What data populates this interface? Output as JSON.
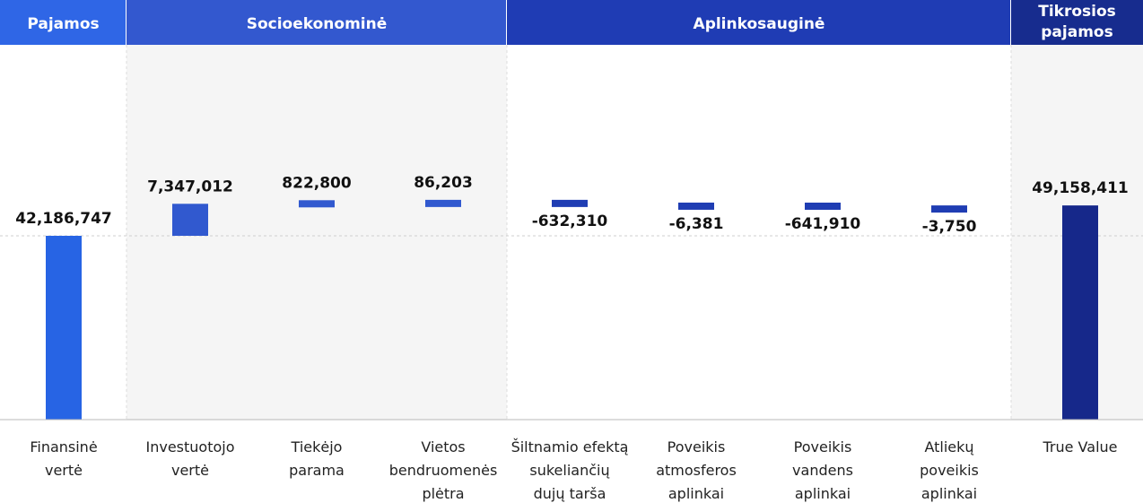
{
  "colors": {
    "pajamos_header": "#2f66e6",
    "socio_header": "#3358cf",
    "aplinko_header": "#1f3cb4",
    "tikros_header": "#172c8e",
    "bar_finansine": "#2764e4",
    "bar_socio": "#3159cf",
    "bar_aplinko": "#1f3db3",
    "bar_tikros": "#16288a",
    "panel_bg": "#f5f5f5"
  },
  "chart_data": {
    "type": "waterfall",
    "sections": [
      {
        "label": "Pajamos",
        "color_key": "pajamos_header"
      },
      {
        "label": "Socioekonominė",
        "color_key": "socio_header"
      },
      {
        "label": "Aplinkosauginė",
        "color_key": "aplinko_header"
      },
      {
        "label": "Tikrosios pajamos",
        "label_lines": [
          "Tikrosios",
          "pajamos"
        ],
        "color_key": "tikros_header"
      }
    ],
    "steps": [
      {
        "category": [
          "Finansinė",
          "vertė"
        ],
        "value": 42186747,
        "value_label": "42,186,747",
        "kind": "total",
        "section": 0,
        "color_key": "bar_finansine"
      },
      {
        "category": [
          "Investuotojo",
          "vertė"
        ],
        "value": 7347012,
        "value_label": "7,347,012",
        "kind": "delta",
        "section": 1,
        "color_key": "bar_socio"
      },
      {
        "category": [
          "Tiekėjo",
          "parama"
        ],
        "value": 822800,
        "value_label": "822,800",
        "kind": "delta",
        "section": 1,
        "color_key": "bar_socio"
      },
      {
        "category": [
          "Vietos",
          "bendruomenės",
          "plėtra"
        ],
        "value": 86203,
        "value_label": "86,203",
        "kind": "delta",
        "section": 1,
        "color_key": "bar_socio"
      },
      {
        "category": [
          "Šiltnamio efektą",
          "sukeliančių",
          "dujų tarša"
        ],
        "value": -632310,
        "value_label": "-632,310",
        "kind": "delta",
        "section": 2,
        "color_key": "bar_aplinko"
      },
      {
        "category": [
          "Poveikis",
          "atmosferos",
          "aplinkai"
        ],
        "value": -6381,
        "value_label": "-6,381",
        "kind": "delta",
        "section": 2,
        "color_key": "bar_aplinko"
      },
      {
        "category": [
          "Poveikis",
          "vandens",
          "aplinkai"
        ],
        "value": -641910,
        "value_label": "-641,910",
        "kind": "delta",
        "section": 2,
        "color_key": "bar_aplinko"
      },
      {
        "category": [
          "Atliekų",
          "poveikis",
          "aplinkai"
        ],
        "value": -3750,
        "value_label": "-3,750",
        "kind": "delta",
        "section": 2,
        "color_key": "bar_aplinko"
      },
      {
        "category": [
          "True Value"
        ],
        "value": 49158411,
        "value_label": "49,158,411",
        "kind": "total",
        "section": 3,
        "color_key": "bar_tikros"
      }
    ],
    "reference_line": 42186747
  }
}
